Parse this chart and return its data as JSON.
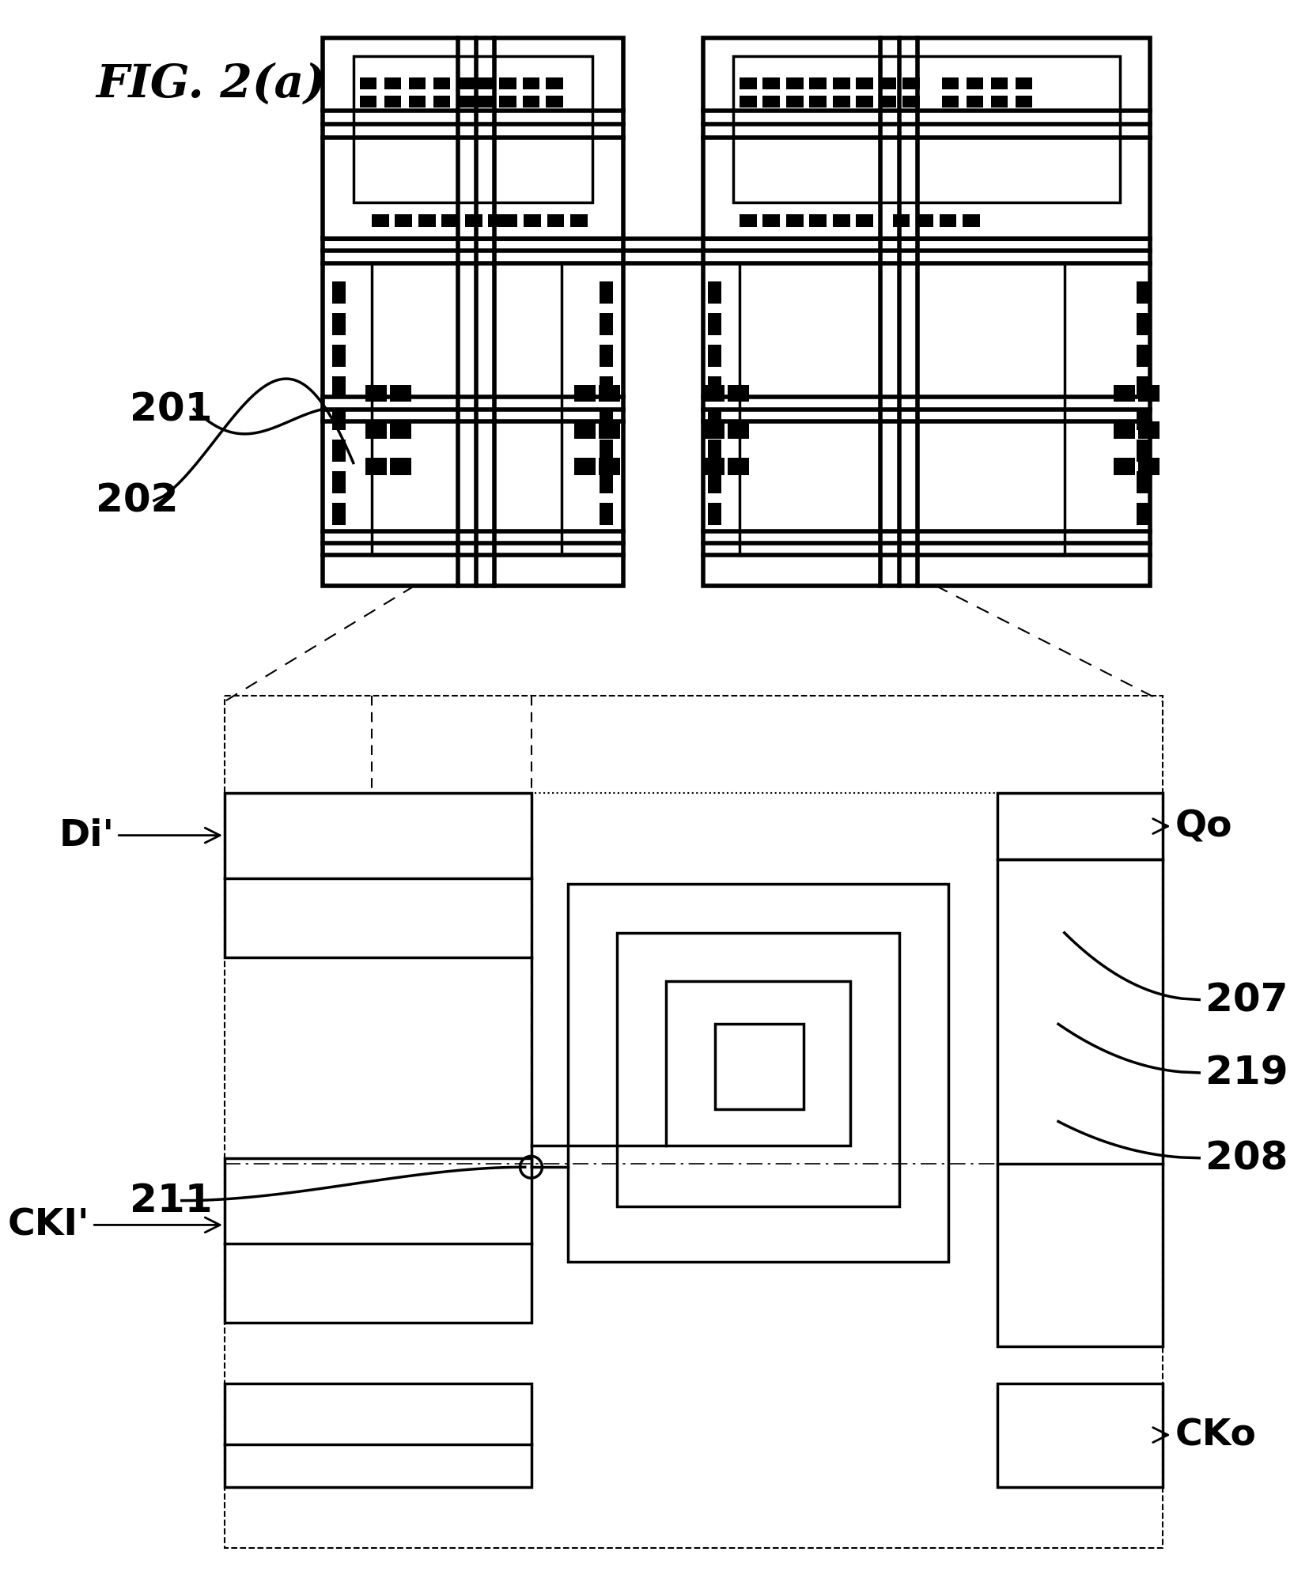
{
  "title": "FIG. 2(a)",
  "bg_color": "#ffffff",
  "fig_width": 20.27,
  "fig_height": 25.67
}
